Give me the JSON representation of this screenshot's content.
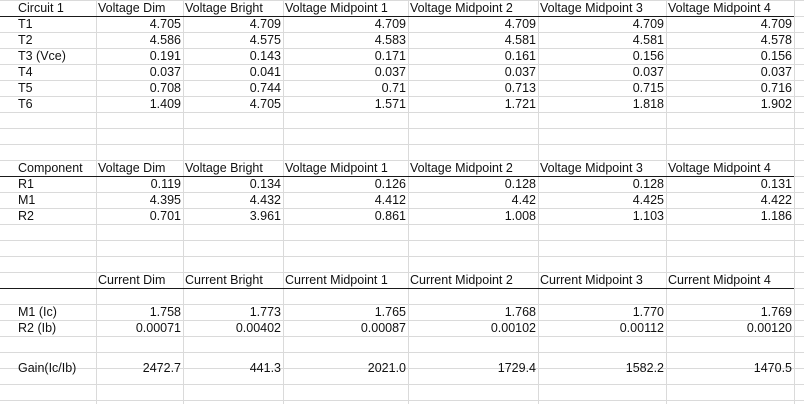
{
  "table1": {
    "headers": [
      "Circuit 1",
      "Voltage Dim",
      "Voltage Bright",
      "Voltage Midpoint 1",
      "Voltage Midpoint 2",
      "Voltage Midpoint 3",
      "Voltage Midpoint 4"
    ],
    "rows": [
      [
        "T1",
        "4.705",
        "4.709",
        "4.709",
        "4.709",
        "4.709",
        "4.709"
      ],
      [
        "T2",
        "4.586",
        "4.575",
        "4.583",
        "4.581",
        "4.581",
        "4.578"
      ],
      [
        "T3 (Vce)",
        "0.191",
        "0.143",
        "0.171",
        "0.161",
        "0.156",
        "0.156"
      ],
      [
        "T4",
        "0.037",
        "0.041",
        "0.037",
        "0.037",
        "0.037",
        "0.037"
      ],
      [
        "T5",
        "0.708",
        "0.744",
        "0.71",
        "0.713",
        "0.715",
        "0.716"
      ],
      [
        "T6",
        "1.409",
        "4.705",
        "1.571",
        "1.721",
        "1.818",
        "1.902"
      ]
    ]
  },
  "table2": {
    "headers": [
      "Component",
      "Voltage Dim",
      "Voltage Bright",
      "Voltage Midpoint 1",
      "Voltage Midpoint 2",
      "Voltage Midpoint 3",
      "Voltage Midpoint 4"
    ],
    "rows": [
      [
        "R1",
        "0.119",
        "0.134",
        "0.126",
        "0.128",
        "0.128",
        "0.131"
      ],
      [
        "M1",
        "4.395",
        "4.432",
        "4.412",
        "4.42",
        "4.425",
        "4.422"
      ],
      [
        "R2",
        "0.701",
        "3.961",
        "0.861",
        "1.008",
        "1.103",
        "1.186"
      ]
    ]
  },
  "table3": {
    "headers": [
      "",
      "Current Dim",
      "Current Bright",
      "Current Midpoint 1",
      "Current Midpoint 2",
      "Current Midpoint 3",
      "Current Midpoint 4"
    ],
    "rows": [
      [
        "M1 (Ic)",
        "1.758",
        "1.773",
        "1.765",
        "1.768",
        "1.770",
        "1.769"
      ],
      [
        "R2 (Ib)",
        "0.00071",
        "0.00402",
        "0.00087",
        "0.00102",
        "0.00112",
        "0.00120"
      ]
    ]
  },
  "gain": [
    "Gain(Ic/Ib)",
    "2472.7",
    "441.3",
    "2021.0",
    "1729.4",
    "1582.2",
    "1470.5"
  ]
}
